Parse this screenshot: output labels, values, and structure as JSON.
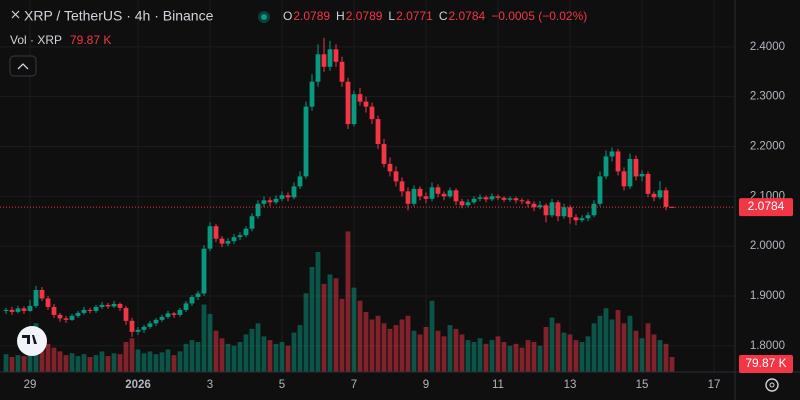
{
  "chart_data": {
    "type": "candlestick",
    "title": "XRP / TetherUS · 4h · Binance",
    "ohlc": [
      {
        "label": "O",
        "value": "2.0789"
      },
      {
        "label": "H",
        "value": "2.0789"
      },
      {
        "label": "L",
        "value": "2.0771"
      },
      {
        "label": "C",
        "value": "2.0784"
      }
    ],
    "change": "−0.0005 (−0.02%)",
    "up_color": "#089981",
    "down_color": "#f23645",
    "xlim": [
      -1,
      121.5
    ],
    "xticks": [
      {
        "value": 4,
        "label": "29"
      },
      {
        "value": 22,
        "label": "2026"
      },
      {
        "value": 34,
        "label": "3"
      },
      {
        "value": 46,
        "label": "5"
      },
      {
        "value": 58,
        "label": "7"
      },
      {
        "value": 70,
        "label": "9"
      },
      {
        "value": 82,
        "label": "11"
      },
      {
        "value": 94,
        "label": "13"
      },
      {
        "value": 106,
        "label": "15"
      },
      {
        "value": 118,
        "label": "17"
      }
    ],
    "ylim": [
      1.7474,
      2.494
    ],
    "yticks": [
      {
        "value": 1.8,
        "label": "1.8000"
      },
      {
        "value": 1.9,
        "label": "1.9000"
      },
      {
        "value": 2.0,
        "label": "2.0000"
      },
      {
        "value": 2.1,
        "label": "2.1000"
      },
      {
        "value": 2.2,
        "label": "2.2000"
      },
      {
        "value": 2.3,
        "label": "2.3000"
      },
      {
        "value": 2.4,
        "label": "2.4000"
      }
    ],
    "grid": true,
    "candles": [
      [
        1.87,
        1.876,
        1.864,
        1.872
      ],
      [
        1.872,
        1.878,
        1.862,
        1.868
      ],
      [
        1.868,
        1.88,
        1.865,
        1.875
      ],
      [
        1.875,
        1.879,
        1.864,
        1.87
      ],
      [
        1.87,
        1.892,
        1.868,
        1.88
      ],
      [
        1.88,
        1.92,
        1.876,
        1.912
      ],
      [
        1.912,
        1.918,
        1.89,
        1.895
      ],
      [
        1.895,
        1.9,
        1.872,
        1.878
      ],
      [
        1.878,
        1.884,
        1.856,
        1.862
      ],
      [
        1.862,
        1.866,
        1.848,
        1.855
      ],
      [
        1.855,
        1.86,
        1.846,
        1.852
      ],
      [
        1.852,
        1.864,
        1.85,
        1.86
      ],
      [
        1.86,
        1.87,
        1.856,
        1.866
      ],
      [
        1.866,
        1.878,
        1.862,
        1.872
      ],
      [
        1.872,
        1.876,
        1.865,
        1.87
      ],
      [
        1.87,
        1.882,
        1.866,
        1.878
      ],
      [
        1.878,
        1.888,
        1.874,
        1.882
      ],
      [
        1.882,
        1.886,
        1.874,
        1.879
      ],
      [
        1.879,
        1.89,
        1.876,
        1.884
      ],
      [
        1.884,
        1.887,
        1.87,
        1.876
      ],
      [
        1.876,
        1.88,
        1.842,
        1.85
      ],
      [
        1.85,
        1.856,
        1.818,
        1.828
      ],
      [
        1.828,
        1.838,
        1.822,
        1.832
      ],
      [
        1.832,
        1.842,
        1.826,
        1.838
      ],
      [
        1.838,
        1.85,
        1.834,
        1.845
      ],
      [
        1.845,
        1.856,
        1.84,
        1.852
      ],
      [
        1.852,
        1.862,
        1.848,
        1.858
      ],
      [
        1.858,
        1.87,
        1.854,
        1.865
      ],
      [
        1.865,
        1.868,
        1.856,
        1.862
      ],
      [
        1.862,
        1.876,
        1.858,
        1.872
      ],
      [
        1.872,
        1.89,
        1.868,
        1.885
      ],
      [
        1.885,
        1.902,
        1.88,
        1.898
      ],
      [
        1.898,
        1.91,
        1.892,
        1.905
      ],
      [
        1.905,
        2.002,
        1.9,
        1.995
      ],
      [
        1.995,
        2.048,
        1.99,
        2.04
      ],
      [
        2.04,
        2.045,
        2.008,
        2.015
      ],
      [
        2.015,
        2.02,
        1.998,
        2.005
      ],
      [
        2.005,
        2.016,
        2.0,
        2.01
      ],
      [
        2.01,
        2.024,
        2.004,
        2.018
      ],
      [
        2.018,
        2.028,
        2.012,
        2.022
      ],
      [
        2.022,
        2.04,
        2.018,
        2.035
      ],
      [
        2.035,
        2.066,
        2.03,
        2.06
      ],
      [
        2.06,
        2.092,
        2.055,
        2.085
      ],
      [
        2.085,
        2.1,
        2.078,
        2.092
      ],
      [
        2.092,
        2.098,
        2.08,
        2.088
      ],
      [
        2.088,
        2.102,
        2.084,
        2.095
      ],
      [
        2.095,
        2.11,
        2.09,
        2.102
      ],
      [
        2.102,
        2.108,
        2.09,
        2.098
      ],
      [
        2.098,
        2.128,
        2.094,
        2.12
      ],
      [
        2.12,
        2.15,
        2.115,
        2.14
      ],
      [
        2.14,
        2.29,
        2.135,
        2.28
      ],
      [
        2.28,
        2.345,
        2.272,
        2.33
      ],
      [
        2.33,
        2.405,
        2.32,
        2.385
      ],
      [
        2.385,
        2.418,
        2.35,
        2.36
      ],
      [
        2.36,
        2.412,
        2.352,
        2.395
      ],
      [
        2.395,
        2.405,
        2.36,
        2.37
      ],
      [
        2.37,
        2.38,
        2.32,
        2.33
      ],
      [
        2.33,
        2.338,
        2.235,
        2.245
      ],
      [
        2.245,
        2.312,
        2.24,
        2.305
      ],
      [
        2.305,
        2.318,
        2.282,
        2.29
      ],
      [
        2.29,
        2.3,
        2.268,
        2.28
      ],
      [
        2.28,
        2.288,
        2.245,
        2.255
      ],
      [
        2.255,
        2.262,
        2.195,
        2.205
      ],
      [
        2.205,
        2.215,
        2.158,
        2.165
      ],
      [
        2.165,
        2.178,
        2.14,
        2.15
      ],
      [
        2.15,
        2.16,
        2.12,
        2.13
      ],
      [
        2.13,
        2.138,
        2.1,
        2.11
      ],
      [
        2.11,
        2.118,
        2.072,
        2.085
      ],
      [
        2.085,
        2.122,
        2.08,
        2.115
      ],
      [
        2.115,
        2.12,
        2.092,
        2.1
      ],
      [
        2.1,
        2.108,
        2.086,
        2.095
      ],
      [
        2.095,
        2.128,
        2.09,
        2.118
      ],
      [
        2.118,
        2.124,
        2.098,
        2.105
      ],
      [
        2.105,
        2.11,
        2.092,
        2.1
      ],
      [
        2.1,
        2.118,
        2.096,
        2.112
      ],
      [
        2.112,
        2.116,
        2.082,
        2.09
      ],
      [
        2.09,
        2.095,
        2.076,
        2.082
      ],
      [
        2.082,
        2.094,
        2.078,
        2.088
      ],
      [
        2.088,
        2.1,
        2.084,
        2.095
      ],
      [
        2.095,
        2.104,
        2.09,
        2.098
      ],
      [
        2.098,
        2.102,
        2.088,
        2.094
      ],
      [
        2.094,
        2.106,
        2.09,
        2.1
      ],
      [
        2.1,
        2.104,
        2.092,
        2.097
      ],
      [
        2.097,
        2.1,
        2.088,
        2.093
      ],
      [
        2.093,
        2.1,
        2.089,
        2.096
      ],
      [
        2.096,
        2.099,
        2.086,
        2.092
      ],
      [
        2.092,
        2.096,
        2.084,
        2.09
      ],
      [
        2.09,
        2.094,
        2.078,
        2.085
      ],
      [
        2.085,
        2.09,
        2.07,
        2.078
      ],
      [
        2.078,
        2.09,
        2.074,
        2.082
      ],
      [
        2.082,
        2.086,
        2.048,
        2.062
      ],
      [
        2.062,
        2.095,
        2.058,
        2.088
      ],
      [
        2.088,
        2.092,
        2.05,
        2.06
      ],
      [
        2.06,
        2.085,
        2.055,
        2.078
      ],
      [
        2.078,
        2.082,
        2.045,
        2.058
      ],
      [
        2.058,
        2.064,
        2.042,
        2.052
      ],
      [
        2.052,
        2.062,
        2.048,
        2.056
      ],
      [
        2.056,
        2.068,
        2.05,
        2.062
      ],
      [
        2.062,
        2.092,
        2.058,
        2.085
      ],
      [
        2.085,
        2.15,
        2.08,
        2.14
      ],
      [
        2.14,
        2.192,
        2.135,
        2.18
      ],
      [
        2.18,
        2.198,
        2.17,
        2.19
      ],
      [
        2.19,
        2.195,
        2.142,
        2.15
      ],
      [
        2.15,
        2.158,
        2.112,
        2.12
      ],
      [
        2.12,
        2.186,
        2.115,
        2.175
      ],
      [
        2.175,
        2.182,
        2.132,
        2.14
      ],
      [
        2.14,
        2.152,
        2.13,
        2.145
      ],
      [
        2.145,
        2.15,
        2.098,
        2.105
      ],
      [
        2.105,
        2.11,
        2.09,
        2.098
      ],
      [
        2.098,
        2.13,
        2.094,
        2.112
      ],
      [
        2.112,
        2.118,
        2.072,
        2.0789
      ],
      [
        2.0789,
        2.0789,
        2.0771,
        2.0784
      ]
    ],
    "volume": {
      "name": "Vol · XRP",
      "vlim": [
        0,
        800000
      ],
      "last_label": "79.87 K",
      "values": [
        95000,
        80000,
        90000,
        85000,
        120000,
        260000,
        180000,
        150000,
        130000,
        110000,
        90000,
        100000,
        85000,
        95000,
        80000,
        90000,
        110000,
        85000,
        100000,
        95000,
        160000,
        180000,
        120000,
        100000,
        110000,
        95000,
        105000,
        120000,
        90000,
        110000,
        150000,
        170000,
        160000,
        360000,
        310000,
        220000,
        180000,
        150000,
        140000,
        160000,
        200000,
        230000,
        260000,
        190000,
        170000,
        150000,
        160000,
        140000,
        210000,
        250000,
        420000,
        560000,
        640000,
        470000,
        520000,
        500000,
        390000,
        750000,
        450000,
        380000,
        320000,
        280000,
        300000,
        260000,
        230000,
        250000,
        280000,
        300000,
        220000,
        200000,
        240000,
        380000,
        220000,
        190000,
        250000,
        230000,
        200000,
        170000,
        160000,
        180000,
        150000,
        170000,
        190000,
        160000,
        140000,
        150000,
        130000,
        170000,
        160000,
        140000,
        240000,
        290000,
        260000,
        210000,
        200000,
        170000,
        160000,
        190000,
        260000,
        300000,
        340000,
        280000,
        330000,
        260000,
        300000,
        220000,
        180000,
        260000,
        200000,
        170000,
        150000,
        79870
      ]
    }
  }
}
